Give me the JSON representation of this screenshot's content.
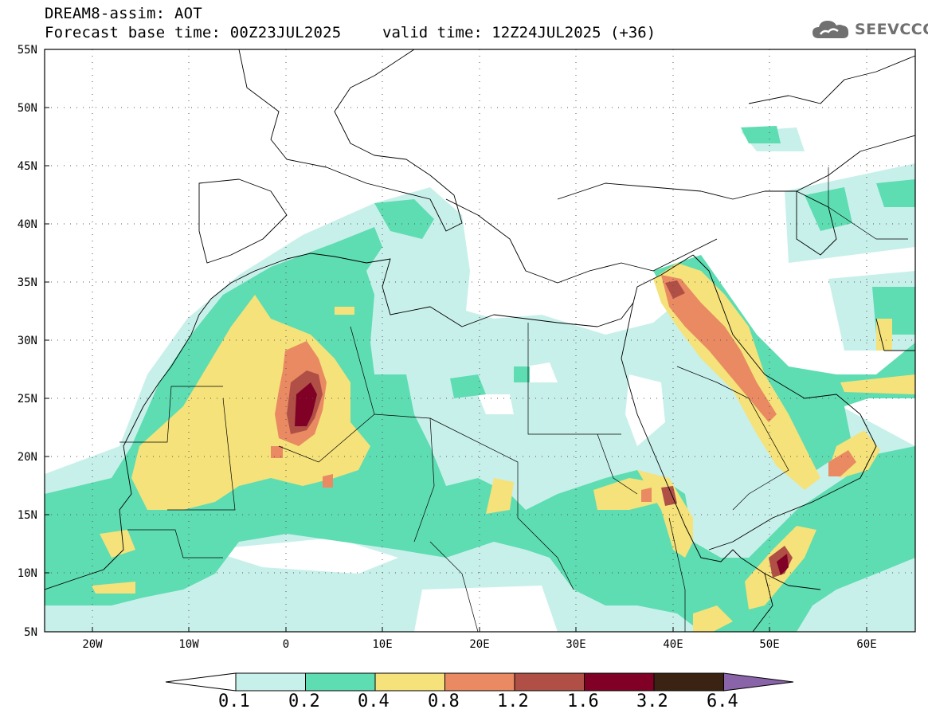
{
  "header": {
    "model_line": "DREAM8-assim: AOT",
    "base_time_line": "Forecast base time: 00Z23JUL2025",
    "valid_time_line": "valid time: 12Z24JUL2025 (+36)",
    "logo_text": "SEEVCCC"
  },
  "axes": {
    "lat_labels": [
      "55N",
      "50N",
      "45N",
      "40N",
      "35N",
      "30N",
      "25N",
      "20N",
      "15N",
      "10N",
      "5N"
    ],
    "lon_labels": [
      "20W",
      "10W",
      "0",
      "10E",
      "20E",
      "30E",
      "40E",
      "50E",
      "60E"
    ],
    "lat_range": [
      5,
      55
    ],
    "lon_range": [
      -25,
      65
    ]
  },
  "colorbar": {
    "labels": [
      "0.1",
      "0.2",
      "0.4",
      "0.8",
      "1.2",
      "1.6",
      "3.2",
      "6.4"
    ],
    "colors": [
      "#c8f0ea",
      "#5edcb2",
      "#f5e27a",
      "#e98a63",
      "#b04f45",
      "#800026",
      "#3b2314",
      "#8a64a8"
    ]
  },
  "colors": {
    "level1": "#c8f0ea",
    "level2": "#5edcb2",
    "level3": "#f5e27a",
    "level4": "#e98a63",
    "level5": "#b04f45",
    "level6": "#800026"
  }
}
